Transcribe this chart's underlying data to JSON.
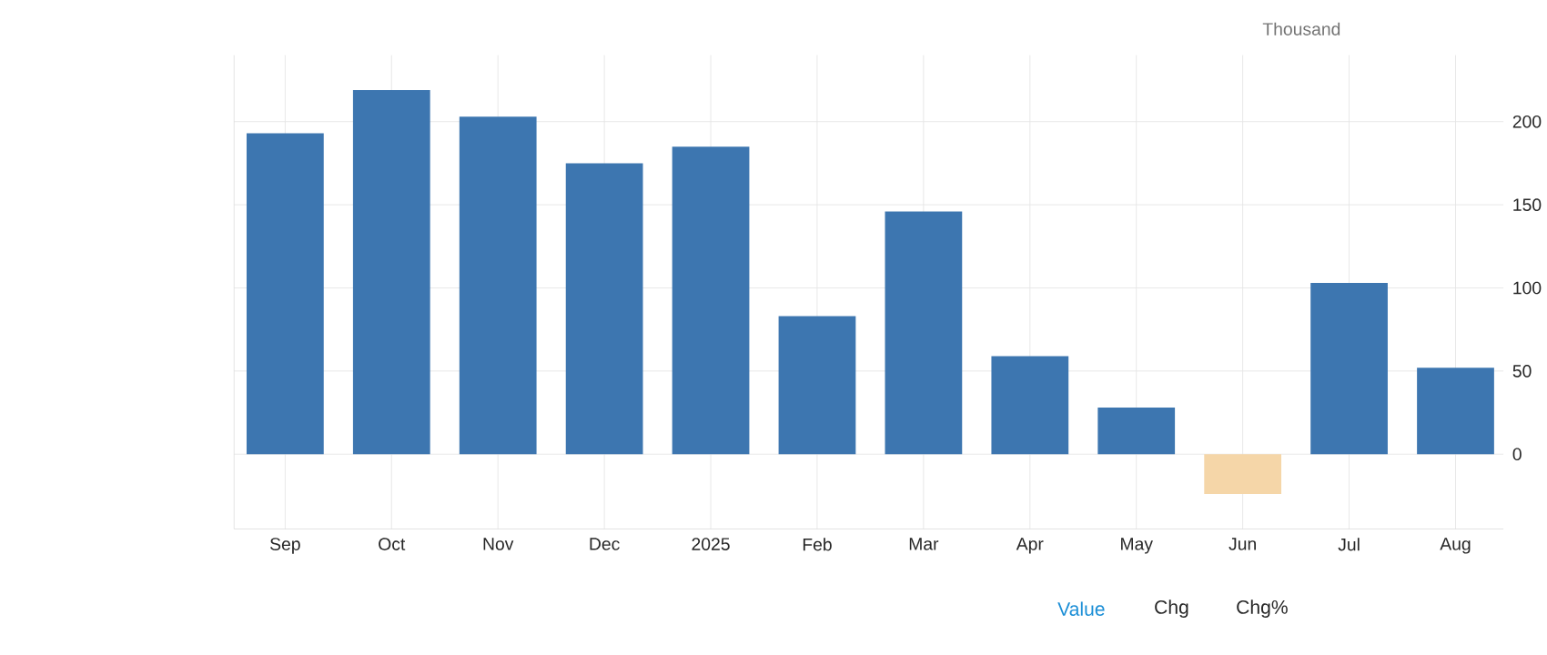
{
  "chart_data": {
    "type": "bar",
    "ylabel": "Thousand",
    "categories": [
      "Sep",
      "Oct",
      "Nov",
      "Dec",
      "2025",
      "Feb",
      "Mar",
      "Apr",
      "May",
      "Jun",
      "Jul",
      "Aug"
    ],
    "values": [
      193,
      219,
      203,
      175,
      185,
      83,
      146,
      59,
      28,
      -24,
      103,
      52
    ],
    "colors": [
      "#3d76b0",
      "#3d76b0",
      "#3d76b0",
      "#3d76b0",
      "#3d76b0",
      "#3d76b0",
      "#3d76b0",
      "#3d76b0",
      "#3d76b0",
      "#f5d6a8",
      "#3d76b0",
      "#3d76b0"
    ],
    "ylim": [
      -45,
      240
    ],
    "yticks": [
      0,
      50,
      100,
      150,
      200
    ],
    "grid": true,
    "annotations": [
      "Value",
      "Chg",
      "Chg%"
    ]
  }
}
